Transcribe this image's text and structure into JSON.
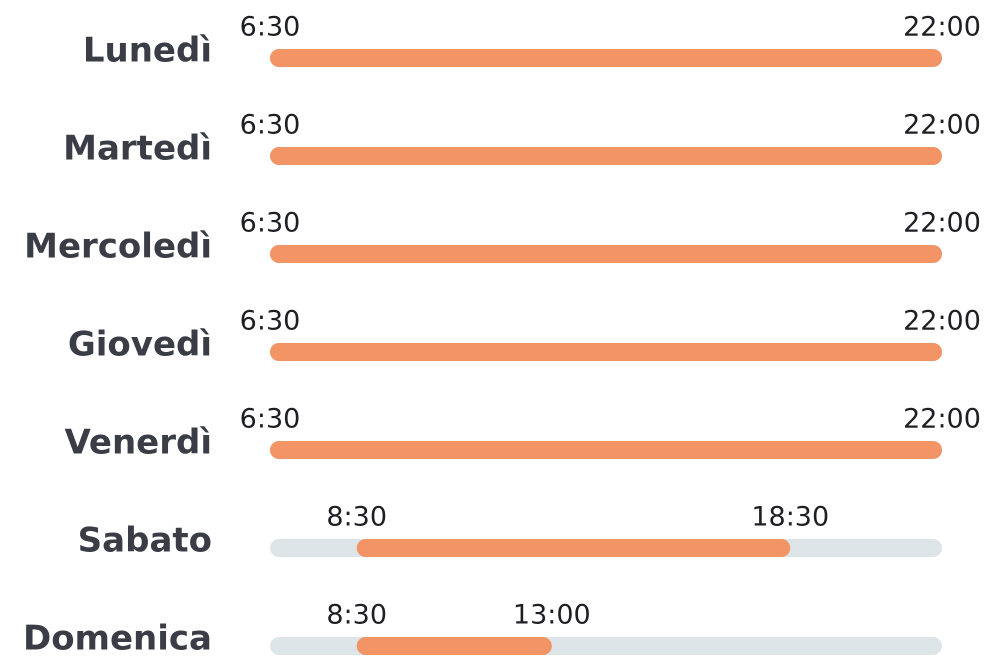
{
  "days": [
    {
      "name": "Lunedì",
      "open": "6:30",
      "close": "22:00"
    },
    {
      "name": "Martedì",
      "open": "6:30",
      "close": "22:00"
    },
    {
      "name": "Mercoledì",
      "open": "6:30",
      "close": "22:00"
    },
    {
      "name": "Giovedì",
      "open": "6:30",
      "close": "22:00"
    },
    {
      "name": "Venerdì",
      "open": "6:30",
      "close": "22:00"
    },
    {
      "name": "Sabato",
      "open": "8:30",
      "close": "18:30"
    },
    {
      "name": "Domenica",
      "open": "8:30",
      "close": "13:00"
    }
  ]
}
